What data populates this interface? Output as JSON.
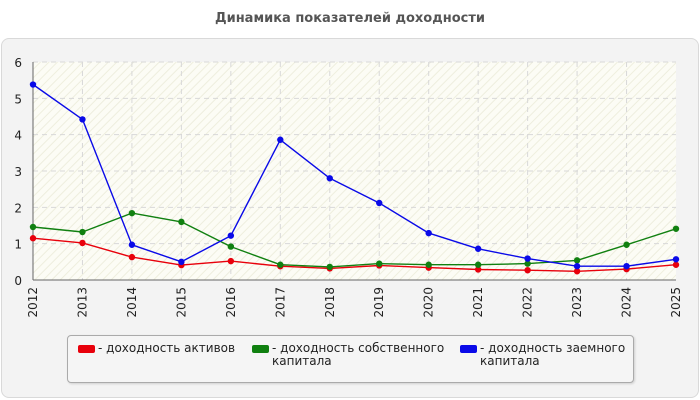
{
  "title": "Динамика показателей доходности",
  "chart_data": {
    "type": "line",
    "title": "Динамика показателей доходности",
    "xlabel": "",
    "ylabel": "",
    "categories": [
      "2012",
      "2013",
      "2014",
      "2015",
      "2016",
      "2017",
      "2018",
      "2019",
      "2020",
      "2021",
      "2022",
      "2023",
      "2024",
      "2025"
    ],
    "yticks": [
      "0",
      "1",
      "2",
      "3",
      "4",
      "5",
      "6"
    ],
    "ylim": [
      0,
      6
    ],
    "grid": true,
    "legend_position": "bottom",
    "series": [
      {
        "name": "- доходность активов",
        "color": "#e8000b",
        "values": [
          1.15,
          1.02,
          0.63,
          0.41,
          0.52,
          0.38,
          0.32,
          0.4,
          0.34,
          0.29,
          0.27,
          0.24,
          0.3,
          0.42
        ]
      },
      {
        "name": "- доходность собственного\nкапитала",
        "color": "#108010",
        "values": [
          1.46,
          1.32,
          1.84,
          1.6,
          0.92,
          0.42,
          0.36,
          0.45,
          0.42,
          0.42,
          0.45,
          0.54,
          0.97,
          1.41
        ]
      },
      {
        "name": "- доходность заемного\nкапитала",
        "color": "#0a0ae8",
        "values": [
          5.38,
          4.42,
          0.97,
          0.5,
          1.22,
          3.86,
          2.8,
          2.12,
          1.29,
          0.86,
          0.59,
          0.38,
          0.38,
          0.57
        ]
      }
    ]
  }
}
